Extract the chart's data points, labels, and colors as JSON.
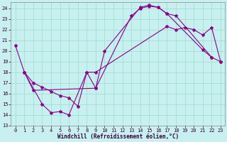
{
  "xlabel": "Windchill (Refroidissement éolien,°C)",
  "bg_color": "#c8f0f0",
  "line_color": "#880088",
  "grid_color": "#99ddcc",
  "xlim_min": -0.5,
  "xlim_max": 23.5,
  "ylim_min": 13,
  "ylim_max": 24.6,
  "yticks": [
    13,
    14,
    15,
    16,
    17,
    18,
    19,
    20,
    21,
    22,
    23,
    24
  ],
  "xticks": [
    0,
    1,
    2,
    3,
    4,
    5,
    6,
    7,
    8,
    9,
    10,
    11,
    12,
    13,
    14,
    15,
    16,
    17,
    18,
    19,
    20,
    21,
    22,
    23
  ],
  "line1_x": [
    0,
    1,
    2,
    9,
    10,
    14,
    15,
    16,
    17,
    21,
    22
  ],
  "line1_y": [
    20.5,
    18.0,
    16.3,
    16.5,
    20.0,
    24.1,
    24.3,
    24.1,
    23.5,
    20.1,
    19.4
  ],
  "line2_x": [
    1,
    3,
    4,
    5,
    6,
    8,
    9,
    13,
    14,
    15,
    16,
    17,
    18,
    22,
    23
  ],
  "line2_y": [
    18.0,
    15.0,
    14.2,
    14.3,
    14.0,
    18.0,
    16.5,
    23.3,
    24.0,
    24.2,
    24.1,
    23.5,
    23.3,
    19.4,
    19.0
  ],
  "line3_x": [
    1,
    2,
    3,
    4,
    5,
    6,
    7,
    8,
    9,
    17,
    18,
    19,
    20,
    21,
    22,
    23
  ],
  "line3_y": [
    18.0,
    17.0,
    16.6,
    16.2,
    15.8,
    15.6,
    14.8,
    18.0,
    18.0,
    22.3,
    22.0,
    22.2,
    22.0,
    21.5,
    22.2,
    19.0
  ]
}
